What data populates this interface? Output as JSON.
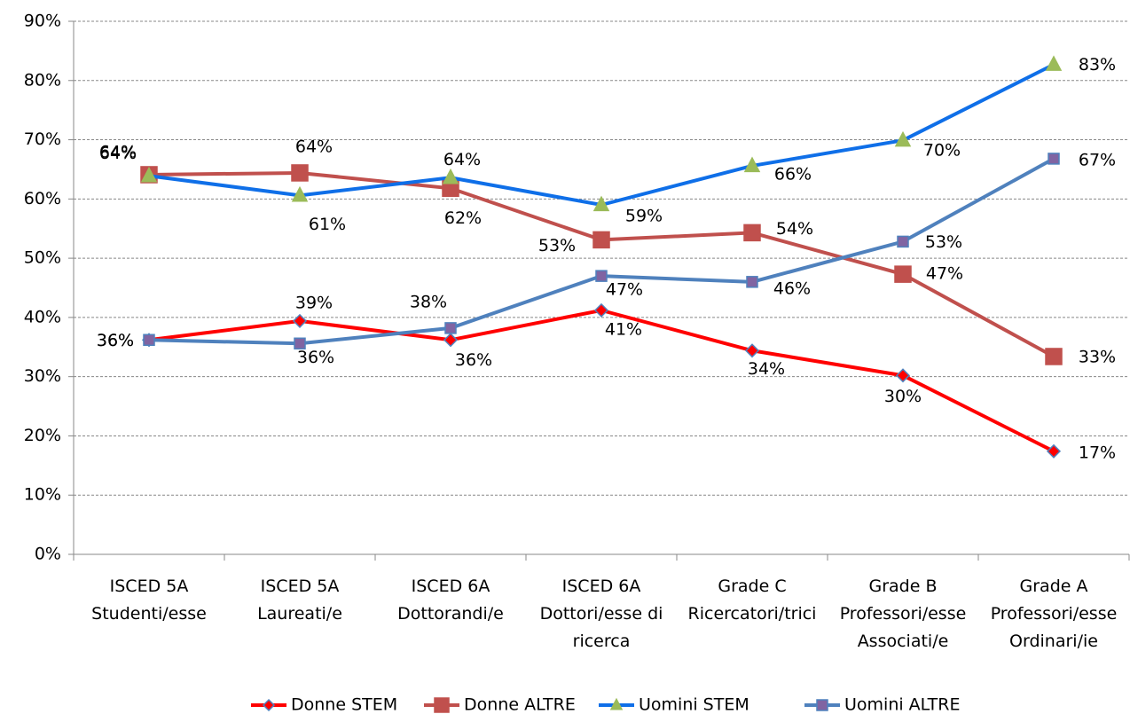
{
  "chart_data": {
    "type": "line",
    "categories": [
      "ISCED 5A\nStudenti/esse",
      "ISCED 5A\nLaureati/e",
      "ISCED 6A\nDottorandi/e",
      "ISCED 6A\nDottori/esse di\nricerca",
      "Grade C\nRicercatori/trici",
      "Grade B\nProfessori/esse\nAssociati/e",
      "Grade A\nProfessori/esse\nOrdinari/ie"
    ],
    "series": [
      {
        "name": "Donne STEM",
        "color": "#ff0000",
        "marker": "diamond",
        "marker_color": "#ff0000",
        "values": [
          36.2,
          39.4,
          36.2,
          41.2,
          34.4,
          30.2,
          17.4
        ],
        "value_labels": [
          "36%",
          "39%",
          "36%",
          "41%",
          "34%",
          "30%",
          "17%"
        ]
      },
      {
        "name": "Donne ALTRE",
        "color": "#c0504d",
        "marker": "square",
        "marker_color": "#c0504d",
        "values": [
          64.1,
          64.4,
          61.8,
          53.1,
          54.3,
          47.3,
          33.4
        ],
        "value_labels": [
          "64%",
          "64%",
          "62%",
          "53%",
          "54%",
          "47%",
          "33%"
        ]
      },
      {
        "name": "Uomini STEM",
        "color": "#0f6fe8",
        "marker": "triangle",
        "marker_color": "#9bbb59",
        "values": [
          63.9,
          60.6,
          63.6,
          59.0,
          65.6,
          69.9,
          82.7
        ],
        "value_labels": [
          "64%",
          "61%",
          "64%",
          "59%",
          "66%",
          "70%",
          "83%"
        ]
      },
      {
        "name": "Uomini ALTRE",
        "color": "#4f81bd",
        "marker": "square",
        "marker_color": "#8064a2",
        "values": [
          36.2,
          35.6,
          38.2,
          47.0,
          46.0,
          52.8,
          66.8
        ],
        "value_labels": [
          "36%",
          "36%",
          "38%",
          "47%",
          "46%",
          "53%",
          "67%"
        ]
      }
    ],
    "ylim": [
      0,
      90
    ],
    "yticks": [
      {
        "value": 0,
        "label": "0%"
      },
      {
        "value": 10,
        "label": "10%"
      },
      {
        "value": 20,
        "label": "20%"
      },
      {
        "value": 30,
        "label": "30%"
      },
      {
        "value": 40,
        "label": "40%"
      },
      {
        "value": 50,
        "label": "50%"
      },
      {
        "value": 60,
        "label": "60%"
      },
      {
        "value": 70,
        "label": "70%"
      },
      {
        "value": 80,
        "label": "80%"
      },
      {
        "value": 90,
        "label": "90%"
      }
    ],
    "grid": true,
    "legend": "bottom"
  }
}
